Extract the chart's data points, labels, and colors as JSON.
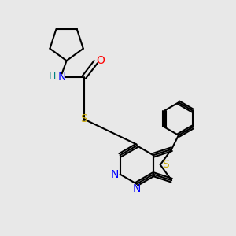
{
  "background_color": "#e8e8e8",
  "bond_color": "#000000",
  "N_color": "#0000ff",
  "O_color": "#ff0000",
  "S_color": "#ccaa00",
  "NH_color": "#008080",
  "figsize": [
    3.0,
    3.0
  ],
  "dpi": 100,
  "lw": 1.5,
  "fs": 9,
  "xlim": [
    0,
    10
  ],
  "ylim": [
    0,
    10
  ]
}
